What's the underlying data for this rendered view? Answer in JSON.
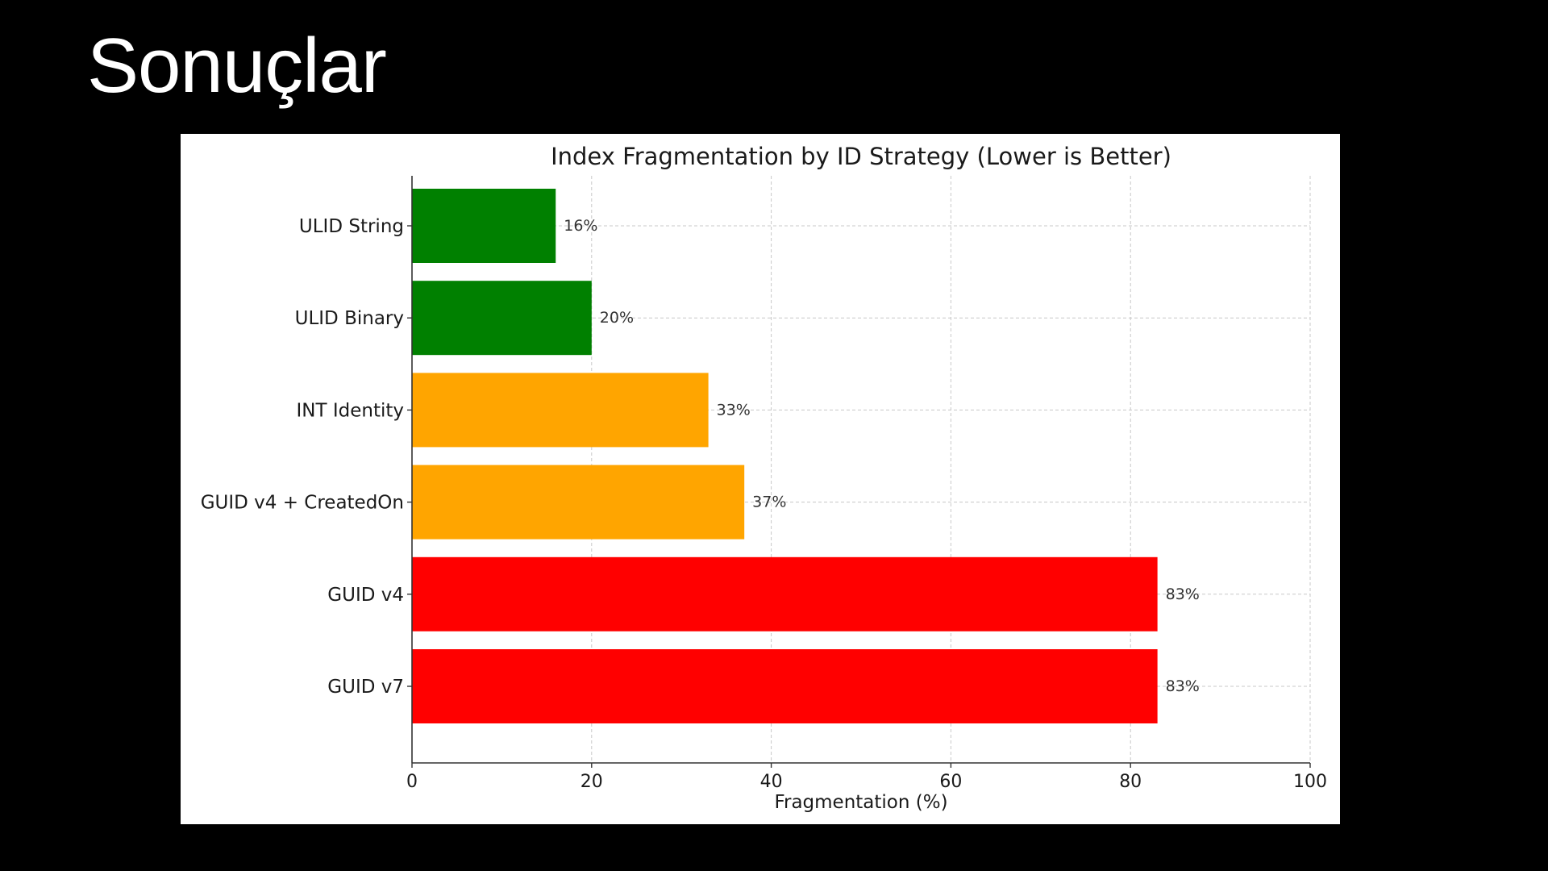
{
  "slide": {
    "title": "Sonuçlar"
  },
  "chart_data": {
    "type": "bar",
    "orientation": "horizontal",
    "title": "Index Fragmentation by ID Strategy (Lower is Better)",
    "xlabel": "Fragmentation (%)",
    "ylabel": "",
    "xlim": [
      0,
      100
    ],
    "xticks": [
      0,
      20,
      40,
      60,
      80,
      100
    ],
    "grid": true,
    "categories": [
      "ULID String",
      "ULID Binary",
      "INT Identity",
      "GUID v4 + CreatedOn",
      "GUID v4",
      "GUID v7"
    ],
    "values": [
      16,
      20,
      33,
      37,
      83,
      83
    ],
    "value_labels": [
      "16%",
      "20%",
      "33%",
      "37%",
      "83%",
      "83%"
    ],
    "colors": [
      "#008000",
      "#008000",
      "#ffa500",
      "#ffa500",
      "#ff0000",
      "#ff0000"
    ]
  }
}
